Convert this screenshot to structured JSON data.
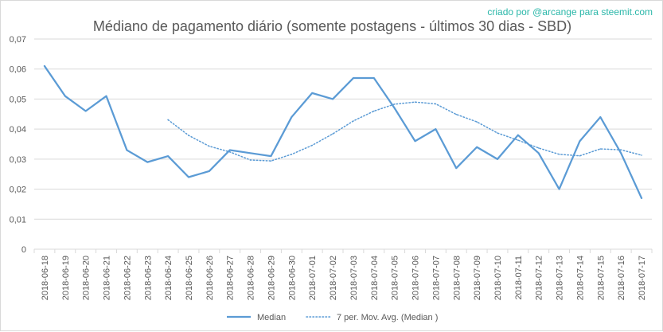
{
  "credit": "criado por @arcange para steemit.com",
  "chart_data": {
    "type": "line",
    "title": "Médiano de pagamento diário (somente postagens - últimos 30 dias - SBD)",
    "xlabel": "",
    "ylabel": "",
    "ylim": [
      0,
      0.07
    ],
    "yticks": [
      "0",
      "0,01",
      "0,02",
      "0,03",
      "0,04",
      "0,05",
      "0,06",
      "0,07"
    ],
    "grid": true,
    "legend_position": "bottom",
    "categories": [
      "2018-06-18",
      "2018-06-19",
      "2018-06-20",
      "2018-06-21",
      "2018-06-22",
      "2018-06-23",
      "2018-06-24",
      "2018-06-25",
      "2018-06-26",
      "2018-06-27",
      "2018-06-28",
      "2018-06-29",
      "2018-06-30",
      "2018-07-01",
      "2018-07-02",
      "2018-07-03",
      "2018-07-04",
      "2018-07-05",
      "2018-07-06",
      "2018-07-07",
      "2018-07-08",
      "2018-07-09",
      "2018-07-10",
      "2018-07-11",
      "2018-07-12",
      "2018-07-13",
      "2018-07-14",
      "2018-07-15",
      "2018-07-16",
      "2018-07-17"
    ],
    "series": [
      {
        "name": "Median",
        "style": "solid",
        "color": "#5b9bd5",
        "values": [
          0.061,
          0.051,
          0.046,
          0.051,
          0.033,
          0.029,
          0.031,
          0.024,
          0.026,
          0.033,
          0.032,
          0.031,
          0.044,
          0.052,
          0.05,
          0.057,
          0.057,
          0.047,
          0.036,
          0.04,
          0.027,
          0.034,
          0.03,
          0.038,
          0.032,
          0.02,
          0.036,
          0.044,
          0.032,
          0.017
        ]
      },
      {
        "name": "7 per. Mov. Avg. (Median )",
        "style": "dotted",
        "color": "#5b9bd5",
        "values": [
          null,
          null,
          null,
          null,
          null,
          null,
          0.0431,
          0.0379,
          0.0343,
          0.0324,
          0.0297,
          0.0294,
          0.0316,
          0.0346,
          0.0384,
          0.0427,
          0.046,
          0.0483,
          0.049,
          0.0484,
          0.0449,
          0.0424,
          0.0387,
          0.0363,
          0.0337,
          0.0316,
          0.0311,
          0.0334,
          0.0331,
          0.0313
        ]
      }
    ]
  }
}
